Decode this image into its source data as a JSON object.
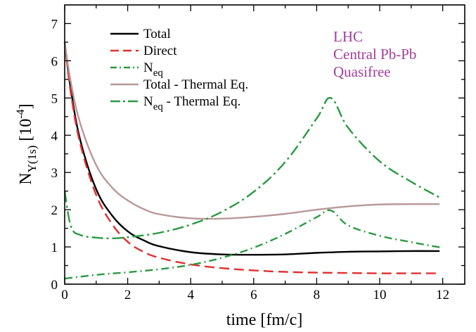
{
  "chart_data": {
    "type": "line",
    "xlabel": "time [fm/c]",
    "ylabel": "N_Υ(1s) [10^-4]",
    "xlim": [
      0,
      12.7
    ],
    "ylim": [
      0,
      7.5
    ],
    "xticks": [
      "0",
      "2",
      "4",
      "6",
      "8",
      "10",
      "12"
    ],
    "yticks": [
      "0",
      "1",
      "2",
      "3",
      "4",
      "5",
      "6",
      "7"
    ],
    "annotation": [
      "LHC",
      "Central Pb-Pb",
      "Quasifree"
    ],
    "annotation_color": "#A0409A",
    "legend_position": "top-left",
    "series": [
      {
        "name": "Total",
        "color": "#000000",
        "dash": "solid",
        "x": [
          0,
          0.2,
          0.5,
          1,
          1.5,
          2,
          2.5,
          3,
          4,
          5,
          6,
          7,
          8,
          9,
          10,
          11,
          11.9
        ],
        "y": [
          6.5,
          5.2,
          3.85,
          2.55,
          1.85,
          1.42,
          1.18,
          1.02,
          0.86,
          0.8,
          0.79,
          0.8,
          0.84,
          0.87,
          0.88,
          0.89,
          0.89
        ]
      },
      {
        "name": "Direct",
        "color": "#E03030",
        "dash": "dashed",
        "x": [
          0,
          0.2,
          0.5,
          1,
          1.5,
          2,
          2.5,
          3,
          4,
          5,
          6,
          7,
          8,
          9,
          10,
          11,
          11.9
        ],
        "y": [
          6.5,
          5.1,
          3.75,
          2.4,
          1.62,
          1.14,
          0.87,
          0.71,
          0.53,
          0.43,
          0.37,
          0.33,
          0.31,
          0.3,
          0.29,
          0.29,
          0.29
        ]
      },
      {
        "name": "N_eq",
        "color": "#2A9A40",
        "dash": "dashdot",
        "x": [
          0,
          1,
          2,
          3,
          4,
          5,
          6,
          7,
          8,
          8.45,
          9,
          10,
          11,
          11.9
        ],
        "y": [
          0.15,
          0.25,
          0.32,
          0.4,
          0.52,
          0.71,
          0.98,
          1.35,
          1.8,
          1.98,
          1.58,
          1.3,
          1.13,
          0.99
        ]
      },
      {
        "name": "Total - Thermal Eq.",
        "color": "#B89898",
        "dash": "solid",
        "x": [
          0,
          0.2,
          0.5,
          1,
          1.5,
          2,
          2.5,
          3,
          4,
          5,
          6,
          7,
          8,
          9,
          10,
          11,
          11.9
        ],
        "y": [
          6.5,
          5.4,
          4.3,
          3.2,
          2.6,
          2.25,
          2.02,
          1.88,
          1.77,
          1.76,
          1.81,
          1.89,
          2.0,
          2.09,
          2.14,
          2.15,
          2.15
        ]
      },
      {
        "name": "N_eq - Thermal Eq.",
        "color": "#2A9A40",
        "dash": "longdashdot",
        "x": [
          0,
          0.2,
          0.5,
          1,
          1.5,
          2,
          3,
          4,
          5,
          6,
          7,
          8,
          8.45,
          9,
          10,
          11,
          11.9
        ],
        "y": [
          2.5,
          1.55,
          1.32,
          1.25,
          1.23,
          1.26,
          1.38,
          1.6,
          1.95,
          2.48,
          3.28,
          4.45,
          5.0,
          4.2,
          3.3,
          2.75,
          2.33
        ]
      }
    ]
  }
}
